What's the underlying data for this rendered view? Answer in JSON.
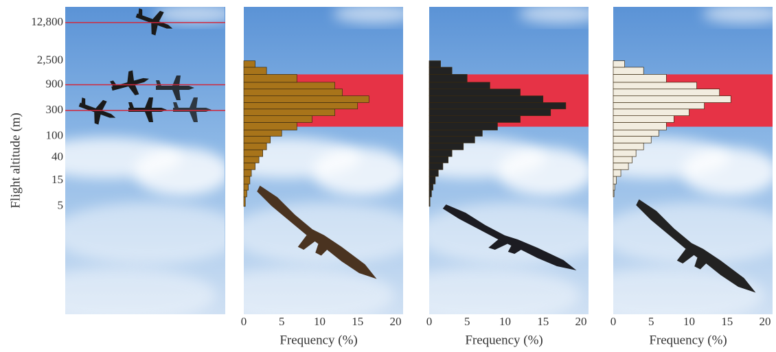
{
  "chart_data": {
    "type": "histogram",
    "ylabel": "Flight altitude (m)",
    "xlabel": "Frequency (%)",
    "log_y": true,
    "ylim": [
      0.05,
      25000
    ],
    "yticks": [
      {
        "value": 12800,
        "label": "12,800"
      },
      {
        "value": 2500,
        "label": "2,500"
      },
      900,
      300,
      100,
      40,
      15,
      5
    ],
    "xlim": [
      0,
      21
    ],
    "xticks": [
      0,
      5,
      10,
      15,
      20
    ],
    "band": [
      150,
      1400
    ],
    "band_color": "#e63346",
    "reference_lines": [
      12800,
      900,
      300
    ],
    "reference_color": "#d0283c",
    "bins": [
      5,
      7.5,
      10,
      13,
      18,
      24,
      32,
      42,
      56,
      75,
      100,
      130,
      180,
      240,
      320,
      420,
      560,
      750,
      1000,
      1400,
      1900,
      2500
    ],
    "series": [
      {
        "color": "#a8741a",
        "values": [
          0.2,
          0.4,
          0.6,
          0.8,
          1,
          1.5,
          2,
          2.5,
          3,
          3.5,
          5,
          7,
          9,
          12,
          15,
          16.5,
          13,
          12,
          7,
          3,
          1.5
        ]
      },
      {
        "color": "#222222",
        "values": [
          0.1,
          0.3,
          0.5,
          0.8,
          1.2,
          1.8,
          2.5,
          3,
          4.5,
          6,
          7,
          9,
          12,
          16,
          18,
          15,
          12,
          8,
          5,
          3,
          1.5
        ]
      },
      {
        "color": "#f2ede0",
        "values": [
          0,
          0.1,
          0.2,
          0.4,
          1,
          2,
          2.5,
          3,
          4,
          5,
          6,
          7,
          8,
          10,
          12,
          15.5,
          14,
          11,
          7,
          4,
          1.5
        ]
      }
    ]
  }
}
